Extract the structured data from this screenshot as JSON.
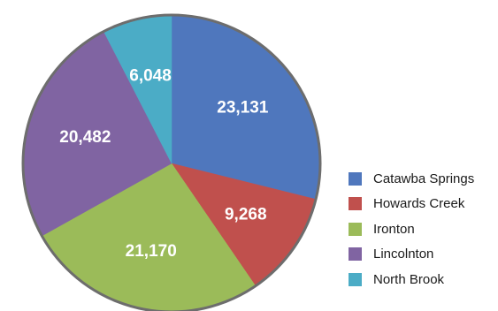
{
  "chart_data": {
    "type": "pie",
    "categories": [
      "Catawba Springs",
      "Howards Creek",
      "Ironton",
      "Lincolnton",
      "North Brook"
    ],
    "values": [
      23131,
      9268,
      21170,
      20482,
      6048
    ],
    "value_labels": [
      "23,131",
      "9,268",
      "21,170",
      "20,482",
      "6,048"
    ],
    "colors": [
      "#4f77bd",
      "#c0504d",
      "#9bbb59",
      "#8064a2",
      "#4bacc6"
    ],
    "legend_position": "right",
    "start_angle": "12 o'clock, clockwise"
  }
}
